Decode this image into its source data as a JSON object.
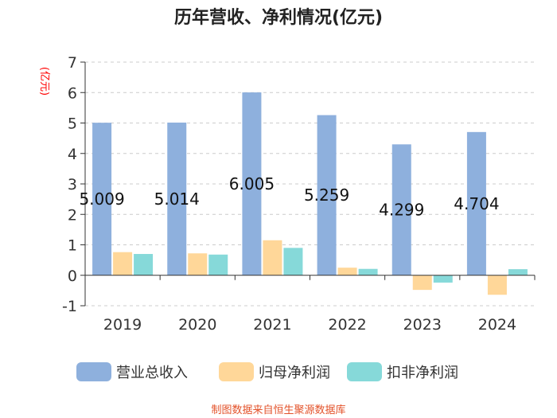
{
  "chart_data": {
    "type": "bar",
    "title": "历年营收、净利情况(亿元)",
    "ylabel": "(亿元)",
    "xlabel": "",
    "ylim": [
      -1,
      7
    ],
    "yticks": [
      7,
      6,
      5,
      4,
      3,
      2,
      1,
      0,
      -1
    ],
    "grid": true,
    "legend_position": "bottom",
    "categories": [
      "2019",
      "2020",
      "2021",
      "2022",
      "2023",
      "2024"
    ],
    "series": [
      {
        "name": "营业总收入",
        "color": "#8eb0dd",
        "values": [
          5.009,
          5.014,
          6.005,
          5.259,
          4.299,
          4.704
        ],
        "labels": [
          "5.009",
          "5.014",
          "6.005",
          "5.259",
          "4.299",
          "4.704"
        ]
      },
      {
        "name": "归母净利润",
        "color": "#ffd799",
        "values": [
          0.76,
          0.72,
          1.15,
          0.25,
          -0.48,
          -0.64
        ]
      },
      {
        "name": "扣非净利润",
        "color": "#86d9d9",
        "values": [
          0.7,
          0.68,
          0.9,
          0.21,
          -0.24,
          0.2
        ]
      }
    ]
  },
  "source": "制图数据来自恒生聚源数据库"
}
